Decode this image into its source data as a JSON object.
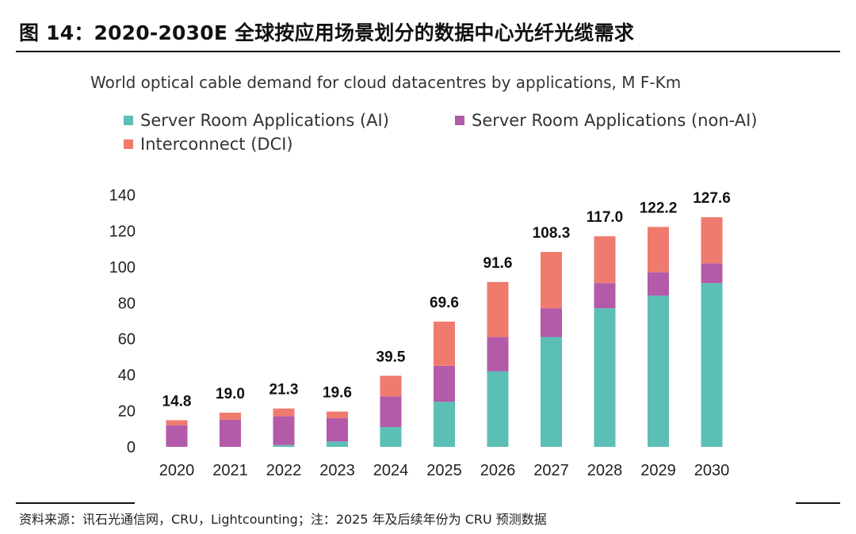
{
  "figure": {
    "title": "图 14：2020-2030E 全球按应用场景划分的数据中心光纤光缆需求",
    "source_note": "资料来源：讯石光通信网，CRU，Lightcounting；注：2025 年及后续年份为 CRU 预测数据"
  },
  "chart_data": {
    "type": "bar",
    "stacked": true,
    "title": "World optical cable demand for cloud datacentres by applications, M F-Km",
    "categories": [
      "2020",
      "2021",
      "2022",
      "2023",
      "2024",
      "2025",
      "2026",
      "2027",
      "2028",
      "2029",
      "2030"
    ],
    "series": [
      {
        "name": "Server Room Applications (AI)",
        "color": "#5bbfb5",
        "values": [
          0,
          0,
          1,
          3,
          11,
          25,
          42,
          61,
          77,
          84,
          91
        ]
      },
      {
        "name": "Server Room Applications (non-AI)",
        "color": "#b35aa8",
        "values": [
          12,
          15,
          16,
          13,
          17,
          20,
          19,
          16,
          14,
          13,
          11
        ]
      },
      {
        "name": "Interconnect (DCI)",
        "color": "#ee7b6e",
        "values": [
          2.8,
          4.0,
          4.3,
          3.6,
          11.5,
          24.6,
          30.6,
          31.3,
          26.0,
          25.2,
          25.6
        ]
      }
    ],
    "totals": [
      "14.8",
      "19.0",
      "21.3",
      "19.6",
      "39.5",
      "69.6",
      "91.6",
      "108.3",
      "117.0",
      "122.2",
      "127.6"
    ],
    "ylim": [
      0,
      140
    ],
    "yticks": [
      "0",
      "20",
      "40",
      "60",
      "80",
      "100",
      "120",
      "140"
    ],
    "xlabel": "",
    "ylabel": "",
    "grid": false,
    "legend_position": "top-left"
  }
}
